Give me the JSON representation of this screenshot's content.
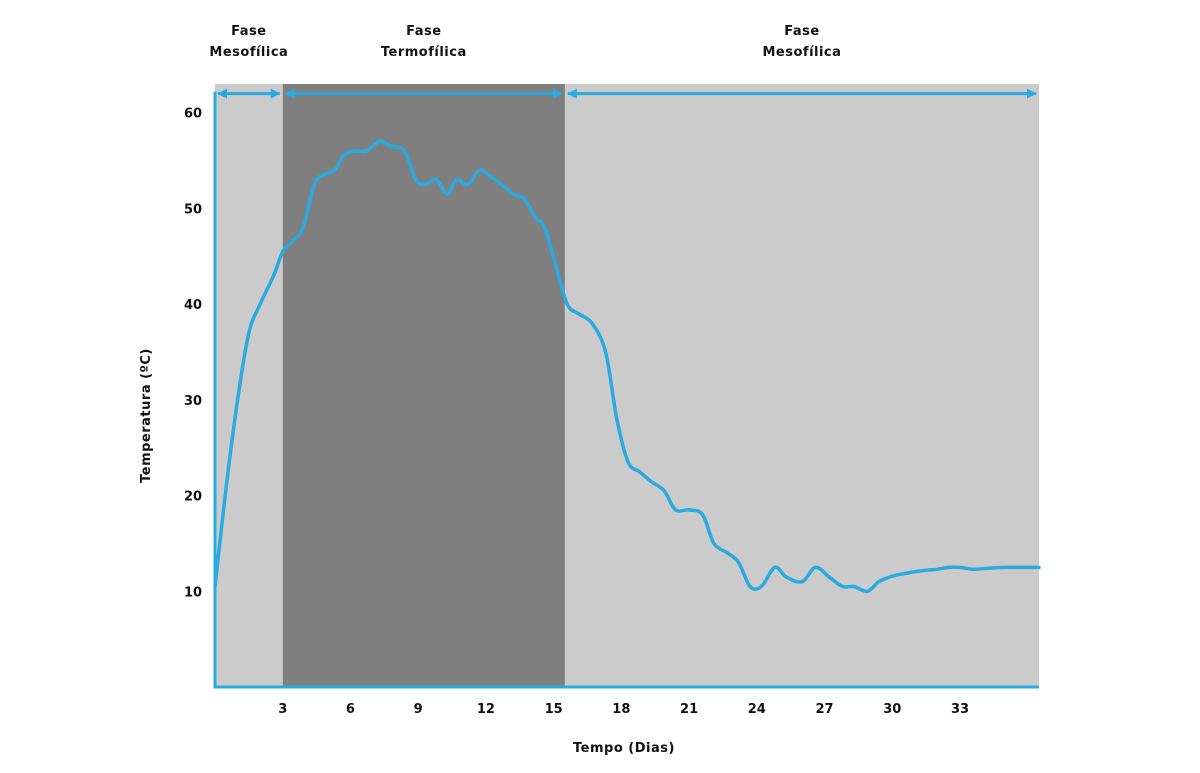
{
  "chart_data": {
    "type": "line",
    "title": "",
    "xlabel": "Tempo (Dias)",
    "ylabel": "Temperatura (ºC)",
    "xlim": [
      0,
      36.5
    ],
    "ylim": [
      0,
      63
    ],
    "x_ticks": [
      3,
      6,
      9,
      12,
      15,
      18,
      21,
      24,
      27,
      30,
      33
    ],
    "y_ticks": [
      10,
      20,
      30,
      40,
      50,
      60
    ],
    "grid": false,
    "legend": "none",
    "phases": [
      {
        "name": "Fase Mesofílica",
        "lines": [
          "Fase",
          "Mesofílica"
        ],
        "start": 0,
        "end": 3,
        "shade": "light"
      },
      {
        "name": "Fase Termofílica",
        "lines": [
          "Fase",
          "Termofílica"
        ],
        "start": 3,
        "end": 15.5,
        "shade": "dark"
      },
      {
        "name": "Fase Mesofílica",
        "lines": [
          "Fase",
          "Mesofílica"
        ],
        "start": 15.5,
        "end": 36.5,
        "shade": "light"
      }
    ],
    "phase_arrow_level": 62,
    "series": [
      {
        "x": [
          0,
          0.5,
          1,
          1.5,
          2,
          2.6,
          3,
          3.4,
          3.9,
          4.4,
          4.8,
          5.3,
          5.7,
          6.2,
          6.7,
          7.3,
          7.8,
          8.4,
          8.9,
          9.3,
          9.8,
          10.3,
          10.7,
          11.2,
          11.7,
          12.1,
          12.7,
          13.2,
          13.7,
          14.2,
          14.6,
          15.1,
          15.6,
          16.1,
          16.7,
          17.3,
          17.8,
          18.3,
          18.8,
          19.3,
          19.9,
          20.4,
          21,
          21.6,
          22.1,
          22.7,
          23.2,
          23.7,
          24.2,
          24.8,
          25.3,
          26,
          26.6,
          27.2,
          27.8,
          28.3,
          28.9,
          29.4,
          29.9,
          30.4,
          30.9,
          31.5,
          32,
          32.5,
          33,
          33.6,
          34.2,
          35,
          35.7,
          36.5
        ],
        "y": [
          10.5,
          21,
          30,
          37,
          40,
          43,
          45.5,
          46.5,
          48,
          52.5,
          53.5,
          54,
          55.5,
          56,
          56,
          57,
          56.5,
          56,
          53,
          52.5,
          53,
          51.5,
          53,
          52.5,
          54,
          53.5,
          52.5,
          51.5,
          51,
          49,
          48,
          44,
          40,
          39,
          38,
          35,
          28,
          23.5,
          22.5,
          21.5,
          20.5,
          18.5,
          18.5,
          18,
          15,
          14,
          13,
          10.5,
          10.5,
          12.5,
          11.5,
          11,
          12.5,
          11.5,
          10.5,
          10.5,
          10,
          11,
          11.5,
          11.8,
          12,
          12.2,
          12.3,
          12.5,
          12.5,
          12.3,
          12.4,
          12.5,
          12.5,
          12.5
        ]
      }
    ],
    "colors": {
      "light_band": "#cbcbcb",
      "dark_band": "#7f7f7f",
      "series": "#29abe2",
      "axis": "#29abe2",
      "text": "#111111"
    }
  }
}
